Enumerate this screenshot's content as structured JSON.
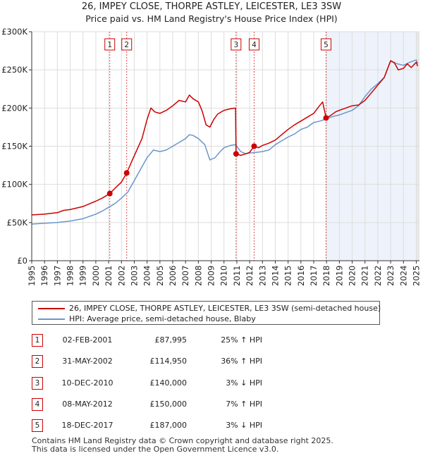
{
  "title": "26, IMPEY CLOSE, THORPE ASTLEY, LEICESTER, LE3 3SW",
  "subtitle": "Price paid vs. HM Land Registry's House Price Index (HPI)",
  "colors": {
    "property": "#cc0000",
    "hpi": "#6a96cc",
    "shade": "#eef2fa",
    "grid": "#dddddd",
    "marker_line": "#cc0000"
  },
  "chart_data": {
    "type": "line",
    "title": "26, IMPEY CLOSE, THORPE ASTLEY, LEICESTER, LE3 3SW",
    "subtitle": "Price paid vs. HM Land Registry's House Price Index (HPI)",
    "xlabel": "",
    "ylabel": "",
    "xlim": [
      1995,
      2025.25
    ],
    "ylim": [
      0,
      300000
    ],
    "x_ticks": [
      1995,
      1996,
      1997,
      1998,
      1999,
      2000,
      2001,
      2002,
      2003,
      2004,
      2005,
      2006,
      2007,
      2008,
      2009,
      2010,
      2011,
      2012,
      2013,
      2014,
      2015,
      2016,
      2017,
      2018,
      2019,
      2020,
      2021,
      2022,
      2023,
      2024,
      2025
    ],
    "y_ticks": [
      0,
      50000,
      100000,
      150000,
      200000,
      250000,
      300000
    ],
    "y_tick_labels": [
      "£0",
      "£50K",
      "£100K",
      "£150K",
      "£200K",
      "£250K",
      "£300K"
    ],
    "grid": true,
    "series": [
      {
        "name": "26, IMPEY CLOSE, THORPE ASTLEY, LEICESTER, LE3 3SW (semi-detached house)",
        "color": "#cc0000",
        "x": [
          1995.0,
          1996.0,
          1997.0,
          1997.5,
          1998.0,
          1999.0,
          2000.0,
          2000.5,
          2001.09,
          2001.5,
          2002.0,
          2002.41,
          2002.8,
          2003.2,
          2003.6,
          2004.0,
          2004.3,
          2004.6,
          2005.0,
          2005.5,
          2006.0,
          2006.5,
          2007.0,
          2007.3,
          2007.6,
          2008.0,
          2008.3,
          2008.6,
          2008.9,
          2009.2,
          2009.5,
          2010.0,
          2010.5,
          2010.9,
          2010.94,
          2011.3,
          2011.7,
          2012.0,
          2012.35,
          2012.7,
          2013.0,
          2013.5,
          2014.0,
          2014.5,
          2015.0,
          2015.5,
          2016.0,
          2016.5,
          2017.0,
          2017.4,
          2017.7,
          2017.96,
          2018.3,
          2018.7,
          2019.0,
          2019.5,
          2020.0,
          2020.5,
          2021.0,
          2021.5,
          2022.0,
          2022.5,
          2023.0,
          2023.3,
          2023.6,
          2024.0,
          2024.3,
          2024.6,
          2025.0,
          2025.1
        ],
        "values": [
          60000,
          61000,
          63000,
          66000,
          67000,
          71000,
          78000,
          82000,
          87995,
          95000,
          103000,
          114950,
          130000,
          145000,
          160000,
          185000,
          200000,
          195000,
          193000,
          197000,
          203000,
          210000,
          208000,
          217000,
          212000,
          208000,
          196000,
          178000,
          175000,
          185000,
          192000,
          197000,
          199000,
          200000,
          140000,
          138000,
          140000,
          142000,
          150000,
          148000,
          151000,
          154000,
          158000,
          165000,
          172000,
          178000,
          183000,
          188000,
          193000,
          202000,
          208000,
          187000,
          190000,
          195000,
          197000,
          200000,
          203000,
          204000,
          210000,
          220000,
          230000,
          240000,
          262000,
          259000,
          250000,
          252000,
          258000,
          253000,
          260000,
          255000
        ]
      },
      {
        "name": "HPI: Average price, semi-detached house, Blaby",
        "color": "#6a96cc",
        "x": [
          1995.0,
          1996.0,
          1997.0,
          1998.0,
          1999.0,
          2000.0,
          2000.5,
          2001.0,
          2001.5,
          2002.0,
          2002.5,
          2003.0,
          2003.5,
          2004.0,
          2004.5,
          2005.0,
          2005.5,
          2006.0,
          2006.5,
          2007.0,
          2007.3,
          2007.6,
          2008.0,
          2008.5,
          2008.9,
          2009.3,
          2009.7,
          2010.0,
          2010.5,
          2010.9,
          2011.3,
          2011.7,
          2012.0,
          2012.5,
          2013.0,
          2013.5,
          2014.0,
          2014.5,
          2015.0,
          2015.5,
          2016.0,
          2016.5,
          2017.0,
          2017.5,
          2018.0,
          2018.5,
          2019.0,
          2019.5,
          2020.0,
          2020.5,
          2021.0,
          2021.5,
          2022.0,
          2022.5,
          2023.0,
          2023.5,
          2024.0,
          2024.5,
          2025.0,
          2025.1
        ],
        "values": [
          48000,
          49000,
          50000,
          52000,
          55000,
          61000,
          65000,
          70000,
          75000,
          82000,
          90000,
          105000,
          120000,
          135000,
          145000,
          143000,
          145000,
          150000,
          155000,
          160000,
          165000,
          164000,
          160000,
          152000,
          132000,
          135000,
          143000,
          148000,
          151000,
          152000,
          143000,
          140000,
          141000,
          142000,
          143000,
          145000,
          152000,
          157000,
          162000,
          166000,
          172000,
          175000,
          181000,
          183000,
          186000,
          189000,
          191000,
          194000,
          197000,
          203000,
          215000,
          225000,
          232000,
          240000,
          262000,
          258000,
          256000,
          260000,
          263000,
          258000
        ]
      }
    ],
    "sales_markers": [
      {
        "label": "1",
        "x": 2001.09,
        "value": 87995
      },
      {
        "label": "2",
        "x": 2002.41,
        "value": 114950
      },
      {
        "label": "3",
        "x": 2010.94,
        "value": 140000
      },
      {
        "label": "4",
        "x": 2012.35,
        "value": 150000
      },
      {
        "label": "5",
        "x": 2017.96,
        "value": 187000
      }
    ],
    "legend_position": "bottom"
  },
  "legend": {
    "property": "26, IMPEY CLOSE, THORPE ASTLEY, LEICESTER, LE3 3SW (semi-detached house)",
    "hpi": "HPI: Average price, semi-detached house, Blaby"
  },
  "sales": [
    {
      "num": "1",
      "date": "02-FEB-2001",
      "price": "£87,995",
      "hpi": "25% ↑ HPI"
    },
    {
      "num": "2",
      "date": "31-MAY-2002",
      "price": "£114,950",
      "hpi": "36% ↑ HPI"
    },
    {
      "num": "3",
      "date": "10-DEC-2010",
      "price": "£140,000",
      "hpi": "3% ↓ HPI"
    },
    {
      "num": "4",
      "date": "08-MAY-2012",
      "price": "£150,000",
      "hpi": "7% ↑ HPI"
    },
    {
      "num": "5",
      "date": "18-DEC-2017",
      "price": "£187,000",
      "hpi": "3% ↓ HPI"
    }
  ],
  "footer": {
    "line1": "Contains HM Land Registry data © Crown copyright and database right 2025.",
    "line2": "This data is licensed under the Open Government Licence v3.0."
  }
}
